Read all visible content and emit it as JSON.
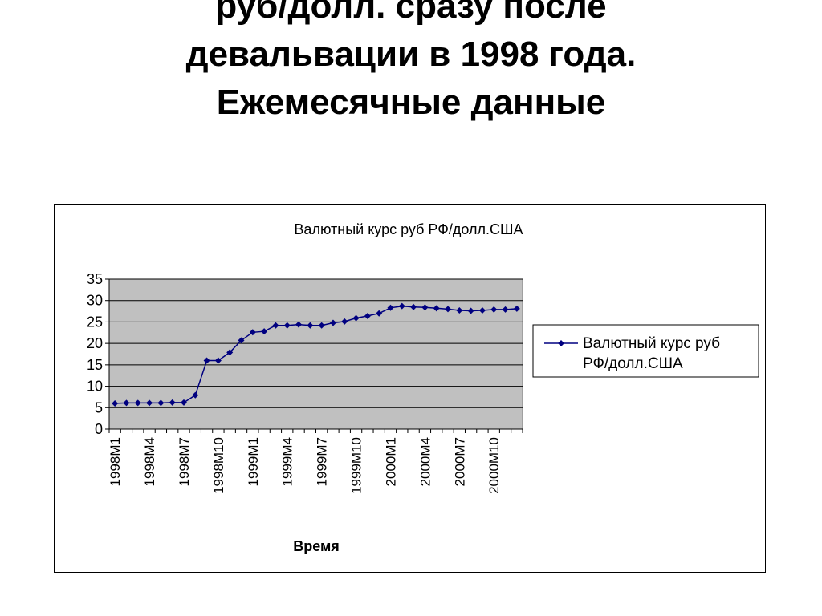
{
  "slide": {
    "title_lines": [
      "руб/долл. сразу после",
      "девальвации в 1998 года.",
      "Ежемесячные данные"
    ]
  },
  "chart_data": {
    "type": "line",
    "title": "Валютный курс руб РФ/долл.США",
    "xlabel": "Время",
    "ylabel": "",
    "ylim": [
      0,
      35
    ],
    "yticks": [
      0,
      5,
      10,
      15,
      20,
      25,
      30,
      35
    ],
    "grid": true,
    "legend_position": "right",
    "x": [
      "1998M1",
      "1998M2",
      "1998M3",
      "1998M4",
      "1998M5",
      "1998M6",
      "1998M7",
      "1998M8",
      "1998M9",
      "1998M10",
      "1998M11",
      "1998M12",
      "1999M1",
      "1999M2",
      "1999M3",
      "1999M4",
      "1999M5",
      "1999M6",
      "1999M7",
      "1999M8",
      "1999M9",
      "1999M10",
      "1999M11",
      "1999M12",
      "2000M1",
      "2000M2",
      "2000M3",
      "2000M4",
      "2000M5",
      "2000M6",
      "2000M7",
      "2000M8",
      "2000M9",
      "2000M10",
      "2000M11",
      "2000M12"
    ],
    "tick_labels": [
      "1998M1",
      "1998M4",
      "1998M7",
      "1998M10",
      "1999M1",
      "1999M4",
      "1999M7",
      "1999M10",
      "2000M1",
      "2000M4",
      "2000M7",
      "2000M10"
    ],
    "series": [
      {
        "name": "Валютный курс руб РФ/долл.США",
        "color": "#000080",
        "marker": "diamond",
        "values": [
          6.0,
          6.1,
          6.1,
          6.1,
          6.1,
          6.2,
          6.2,
          7.9,
          16.0,
          16.0,
          17.9,
          20.7,
          22.6,
          22.8,
          24.2,
          24.2,
          24.4,
          24.2,
          24.2,
          24.8,
          25.1,
          25.9,
          26.4,
          27.0,
          28.3,
          28.7,
          28.5,
          28.4,
          28.2,
          28.0,
          27.7,
          27.6,
          27.7,
          27.9,
          27.9,
          28.1
        ]
      }
    ],
    "colors": {
      "plot_background": "#c0c0c0",
      "gridline": "#000000"
    }
  }
}
